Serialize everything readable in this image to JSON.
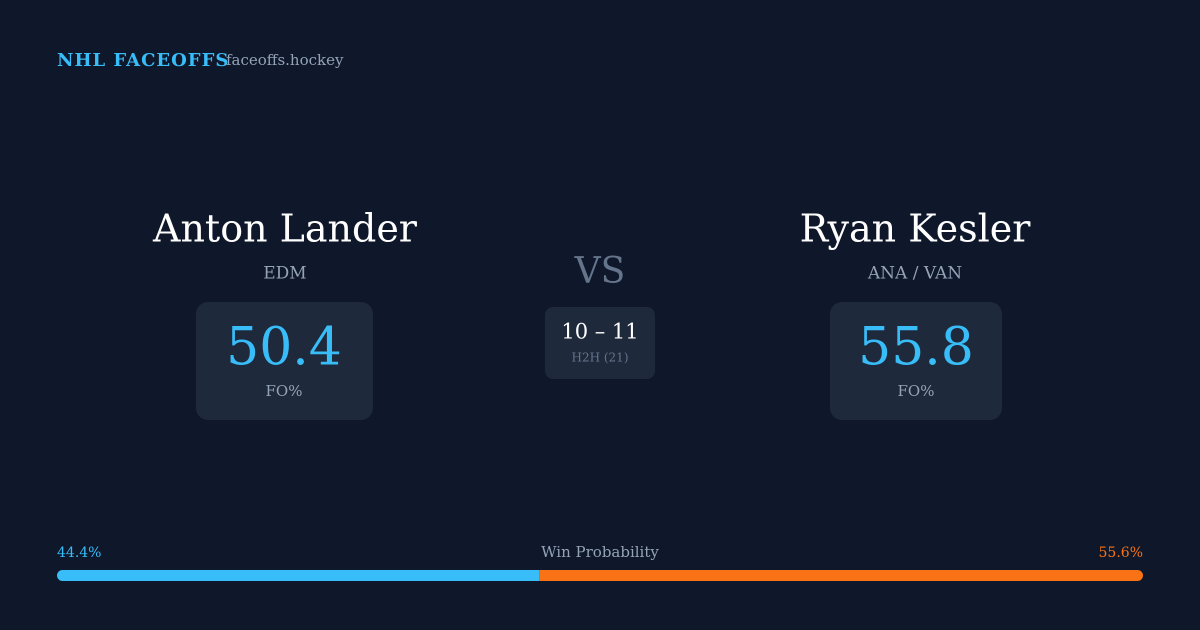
{
  "header": {
    "title": "NHL FACEOFFS",
    "site": "faceoffs.hockey"
  },
  "players": [
    {
      "name": "Anton Lander",
      "team": "EDM",
      "fo_pct": "50.4",
      "fo_label": "FO%"
    },
    {
      "name": "Ryan Kesler",
      "team": "ANA / VAN",
      "fo_pct": "55.8",
      "fo_label": "FO%"
    }
  ],
  "versus": "VS",
  "h2h": {
    "score": "10 – 11",
    "label": "H2H (21)"
  },
  "win_probability": {
    "title": "Win Probability",
    "left": {
      "value": 44.4,
      "label": "44.4%",
      "color": "#38bdf8"
    },
    "right": {
      "value": 55.6,
      "label": "55.6%",
      "color": "#f97316"
    }
  }
}
